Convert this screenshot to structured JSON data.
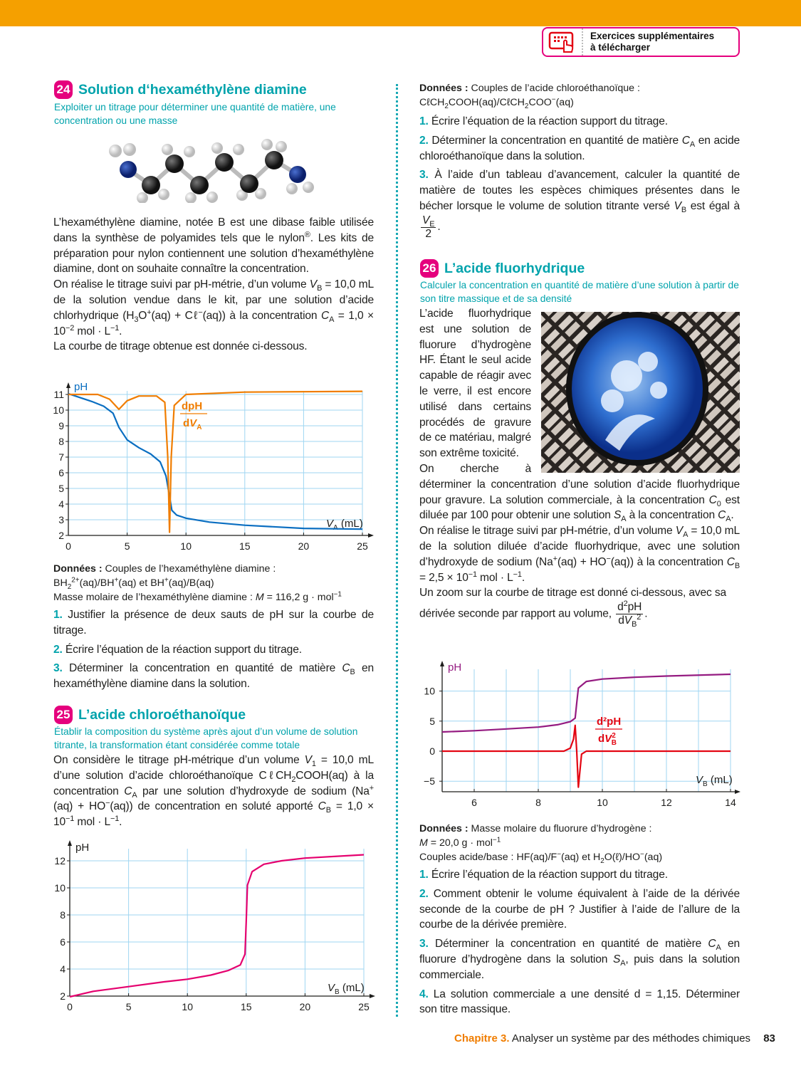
{
  "header": {
    "download_label_line1": "Exercices supplémentaires",
    "download_label_line2": "à télécharger",
    "icon": "touch-screen-icon",
    "accent": "#F5A000",
    "badge_color": "#E5007D"
  },
  "ex24": {
    "number": "24",
    "title": "Solution d‘hexaméthylène diamine",
    "subtitle": "Exploiter un titrage pour déterminer une quantité de matière, une concentration ou une masse",
    "p1": "L’hexaméthylène diamine, notée B est une dibase faible utilisée dans la synthèse de polyamides tels que le nylon<sup>®</sup>. Les kits de préparation pour nylon contiennent une solution d’hexaméthylène diamine, dont on souhaite connaître la concentration.",
    "p2": "On réalise le titrage suivi par pH-métrie, d’un volume <i>V</i><sub>B</sub> = 10,0 mL de la solution vendue dans le kit, par une solution d’acide chlorhydrique (H<sub>3</sub>O<sup>+</sup>(aq) + Cℓ<sup>−</sup>(aq)) à la concentration <i>C</i><sub>A</sub> = 1,0 × 10<sup>−2</sup> mol · L<sup>−1</sup>.",
    "p3": "La courbe de titrage obtenue est donnée ci-dessous.",
    "donnees": "<b>Données :</b> Couples de l’hexaméthylène diamine :<br>BH<sub>2</sub><sup>2+</sup>(aq)/BH<sup>+</sup>(aq) et BH<sup>+</sup>(aq)/B(aq)<br>Masse molaire de l’hexaméthylène diamine : <i>M</i> = 116,2 g · mol<sup>−1</sup>",
    "questions": [
      {
        "n": "1.",
        "text": "Justifier la présence de deux sauts de pH sur la courbe de titrage."
      },
      {
        "n": "2.",
        "text": "Écrire l’équation de la réaction support du titrage."
      },
      {
        "n": "3.",
        "text": "Déterminer la concentration en quantité de matière <i>C</i><sub>B</sub> en hexaméthylène diamine dans la solution."
      }
    ]
  },
  "ex25": {
    "number": "25",
    "title": "L’acide chloroéthanoïque",
    "subtitle": "Établir la composition du système après ajout d’un volume de solution titrante, la transformation étant considérée comme totale",
    "p1": "On considère le titrage pH-métrique d’un volume <i>V</i><sub>1</sub> = 10,0 mL d’une solution d’acide chloroéthanoïque CℓCH<sub>2</sub>COOH(aq) à la concentration <i>C</i><sub>A</sub> par une solution d’hydroxyde de sodium (Na<sup>+</sup>(aq) + HO<sup>−</sup>(aq)) de concentration en soluté apporté <i>C</i><sub>B</sub> = 1,0 × 10<sup>−1</sup> mol · L<sup>−1</sup>.",
    "donnees": "<b>Données :</b> Couples de l’acide chloroéthanoïque :<br>CℓCH<sub>2</sub>COOH(aq)/CℓCH<sub>2</sub>COO<sup>−</sup>(aq)",
    "questions": [
      {
        "n": "1.",
        "text": "Écrire l’équation de la réaction support du titrage."
      },
      {
        "n": "2.",
        "text": "Déterminer la concentration en quantité de matière <i>C</i><sub>A</sub> en acide chloroéthanoïque dans la solution."
      },
      {
        "n": "3.",
        "text": "À l’aide d’un tableau d’avancement, calculer la quantité de matière de toutes les espèces chimiques présentes dans le bécher lorsque le volume de solution titrante versé <i>V</i><sub>B</sub> est égal à <span class=\"frac\"><span class=\"n\"><i>V</i><sub>E</sub></span><span class=\"d\">2</span></span>."
      }
    ]
  },
  "ex26": {
    "number": "26",
    "title": "L’acide fluorhydrique",
    "subtitle": "Calculer la concentration en quantité de matière d’une solution à partir de son titre massique et de sa densité",
    "p1": "L’acide fluorhydrique est une solution de fluorure d’hydrogène HF. Étant le seul acide capable de réagir avec le verre, il est encore utilisé dans certains procédés de gravure de ce matériau, malgré son extrême toxicité.",
    "p2": "On cherche à déterminer la concentration d’une solution d’acide fluorhydrique pour gravure. La solution commerciale, à la concentration <i>C</i><sub>0</sub> est diluée par 100 pour obtenir une solution <i>S</i><sub>A</sub> à la concentration <i>C</i><sub>A</sub>.",
    "p3": "On réalise le titrage suivi par pH-métrie, d’un volume <i>V</i><sub>A</sub> = 10,0 mL de la solution diluée d’acide fluorhydrique, avec une solution d’hydroxyde de sodium (Na<sup>+</sup>(aq) + HO<sup>−</sup>(aq)) à la concentration <i>C</i><sub>B</sub> = 2,5 × 10<sup>−1</sup> mol · L<sup>−1</sup>.",
    "p4": "Un zoom sur la courbe de titrage est donné ci-dessous, avec sa dérivée seconde par rapport au volume, <span class=\"frac\"><span class=\"n\">d<sup>2</sup>pH</span><span class=\"d\">d<i>V</i><sub>B</sub><sup>2</sup></span></span>.",
    "donnees": "<b>Données :</b> Masse molaire du fluorure d’hydrogène :<br><i>M</i> = 20,0 g · mol<sup>−1</sup><br>Couples acide/base : HF(aq)/F<sup>−</sup>(aq) et H<sub>2</sub>O(ℓ)/HO<sup>−</sup>(aq)",
    "questions": [
      {
        "n": "1.",
        "text": "Écrire l’équation de la réaction support du titrage."
      },
      {
        "n": "2.",
        "text": "Comment obtenir le volume équivalent à l’aide de la dérivée seconde de la courbe de pH ? Justifier à l’aide de l’allure de la courbe de la dérivée première."
      },
      {
        "n": "3.",
        "text": "Déterminer la concentration en quantité de matière <i>C</i><sub>A</sub> en fluorure d’hydrogène dans la solution <i>S</i><sub>A</sub>, puis dans la solution commerciale."
      },
      {
        "n": "4.",
        "text": "La solution commerciale a une densité d = 1,15. Déterminer son titre massique."
      }
    ]
  },
  "footer": {
    "chapter": "Chapitre 3.",
    "title": "Analyser un système par des méthodes chimiques",
    "page": "83"
  },
  "chart_data": [
    {
      "type": "line",
      "ylabel": "pH",
      "xlabel": "V_A (mL)",
      "xlim": [
        0,
        25
      ],
      "ylim": [
        2,
        11
      ],
      "xticks": [
        "0",
        "5",
        "10",
        "15",
        "20",
        "25"
      ],
      "yticks": [
        "2",
        "3",
        "4",
        "5",
        "6",
        "7",
        "8",
        "9",
        "10",
        "11"
      ],
      "grid": true,
      "series": [
        {
          "name": "pH",
          "color": "#0A6EC1",
          "points": [
            [
              0,
              11.05
            ],
            [
              1,
              10.8
            ],
            [
              2,
              10.55
            ],
            [
              3,
              10.25
            ],
            [
              3.8,
              9.8
            ],
            [
              4.3,
              8.9
            ],
            [
              5,
              8.1
            ],
            [
              6,
              7.6
            ],
            [
              7,
              7.2
            ],
            [
              7.8,
              6.7
            ],
            [
              8.3,
              5.8
            ],
            [
              8.6,
              4.5
            ],
            [
              8.8,
              3.6
            ],
            [
              9.2,
              3.3
            ],
            [
              10,
              3.1
            ],
            [
              12,
              2.85
            ],
            [
              15,
              2.65
            ],
            [
              20,
              2.45
            ],
            [
              25,
              2.4
            ]
          ]
        },
        {
          "name": "dpH/dV_A",
          "color": "#F07D00",
          "points": [
            [
              0,
              11
            ],
            [
              2.5,
              11
            ],
            [
              3.5,
              10.7
            ],
            [
              4.3,
              10.05
            ],
            [
              5,
              10.6
            ],
            [
              6,
              10.9
            ],
            [
              7.5,
              10.9
            ],
            [
              8.2,
              10.5
            ],
            [
              8.45,
              7
            ],
            [
              8.6,
              2.2
            ],
            [
              8.75,
              7
            ],
            [
              9,
              10.3
            ],
            [
              10,
              11
            ],
            [
              15,
              11.15
            ],
            [
              25,
              11.2
            ]
          ]
        }
      ]
    },
    {
      "type": "line",
      "ylabel": "pH",
      "xlabel": "V_B (mL)",
      "xlim": [
        0,
        25
      ],
      "ylim": [
        2,
        12
      ],
      "xticks": [
        "0",
        "5",
        "10",
        "15",
        "20",
        "25"
      ],
      "yticks": [
        "2",
        "4",
        "6",
        "8",
        "10",
        "12"
      ],
      "grid": true,
      "series": [
        {
          "color": "#E5006E",
          "points": [
            [
              0,
              1.95
            ],
            [
              2,
              2.35
            ],
            [
              5,
              2.7
            ],
            [
              8,
              3.05
            ],
            [
              10,
              3.25
            ],
            [
              12,
              3.55
            ],
            [
              13.5,
              3.9
            ],
            [
              14.5,
              4.3
            ],
            [
              14.9,
              5.1
            ],
            [
              15,
              7.5
            ],
            [
              15.1,
              10.2
            ],
            [
              15.5,
              11.2
            ],
            [
              16.5,
              11.75
            ],
            [
              18,
              12
            ],
            [
              20,
              12.2
            ],
            [
              25,
              12.45
            ]
          ]
        }
      ]
    },
    {
      "type": "line",
      "ylabel": "pH",
      "xlabel": "V_B (mL)",
      "xlim": [
        5,
        14
      ],
      "ylim": [
        -6.7,
        14.5
      ],
      "xticks": [
        "6",
        "8",
        "10",
        "12",
        "14"
      ],
      "yticks": [
        "−5",
        "0",
        "5",
        "10"
      ],
      "grid": true,
      "series": [
        {
          "name": "pH",
          "color": "#951B81",
          "points": [
            [
              5,
              3.2
            ],
            [
              6,
              3.4
            ],
            [
              7,
              3.7
            ],
            [
              8,
              4.0
            ],
            [
              8.6,
              4.4
            ],
            [
              9,
              4.9
            ],
            [
              9.15,
              5.5
            ],
            [
              9.2,
              8
            ],
            [
              9.25,
              10.5
            ],
            [
              9.5,
              11.6
            ],
            [
              10,
              12.0
            ],
            [
              11,
              12.3
            ],
            [
              12,
              12.5
            ],
            [
              14,
              12.8
            ]
          ]
        },
        {
          "name": "d2pH/dV_B2",
          "color": "#E30613",
          "points": [
            [
              5,
              0
            ],
            [
              8.8,
              0
            ],
            [
              9.0,
              0.5
            ],
            [
              9.1,
              2
            ],
            [
              9.15,
              4.3
            ],
            [
              9.2,
              0
            ],
            [
              9.25,
              -6
            ],
            [
              9.35,
              -0.5
            ],
            [
              9.5,
              0
            ],
            [
              14,
              0
            ]
          ]
        }
      ]
    }
  ]
}
